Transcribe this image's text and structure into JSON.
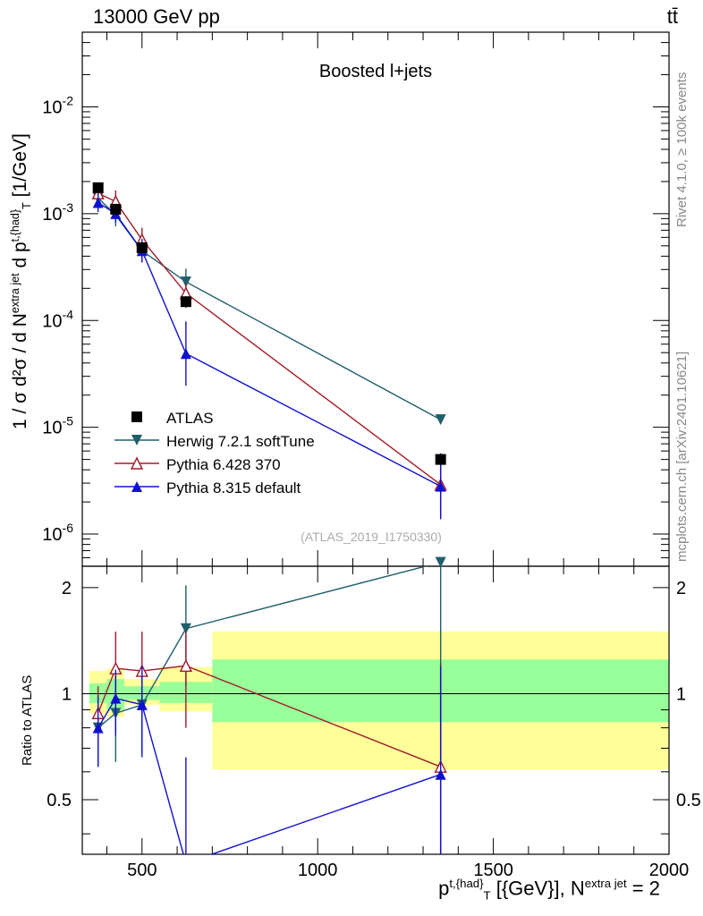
{
  "header": {
    "left": "13000 GeV pp",
    "right": "tt̄"
  },
  "side": {
    "rivet": "Rivet 4.1.0, ≥ 100k events",
    "mcplots": "mcplots.cern.ch [arXiv:2401.10621]"
  },
  "axes": {
    "ylabel_main": "1 / σ d²σ / d N^{extra jet} d p^{t,{had}}_{T} [1/GeV]",
    "ylabel_ratio": "Ratio to ATLAS",
    "xlabel": "p^{t,{had}}_{T} [{GeV}], N^{extra jet} = 2"
  },
  "chart_data": {
    "type": "line",
    "title": "Boosted l+jets",
    "watermark": "(ATLAS_2019_I1750330)",
    "xlim": [
      330,
      2000
    ],
    "ylim_main": [
      5e-07,
      0.05
    ],
    "ylim_ratio": [
      0.35,
      2.3
    ],
    "yscale_main": "log",
    "yscale_ratio": "log",
    "x_ticks": [
      500,
      1000,
      1500,
      2000
    ],
    "x_tick_labels": [
      "500",
      "1000",
      "1500",
      "2000"
    ],
    "y_ticks_main": [
      1e-06,
      1e-05,
      0.0001,
      0.001,
      0.01
    ],
    "y_tick_labels_main": [
      "10^-6",
      "10^-5",
      "10^-4",
      "10^-3",
      "10^-2"
    ],
    "y_ticks_ratio": [
      0.5,
      1,
      2
    ],
    "y_tick_labels_ratio": [
      "0.5",
      "1",
      "2"
    ],
    "legend_position": "lower-left",
    "data": {
      "name": "ATLAS",
      "bins": [
        [
          350,
          400
        ],
        [
          400,
          450
        ],
        [
          450,
          550
        ],
        [
          550,
          700
        ],
        [
          700,
          2000
        ]
      ],
      "x": [
        375,
        425,
        500,
        625,
        1350
      ],
      "y": [
        0.00175,
        0.0011,
        0.00048,
        0.00015,
        5e-06
      ],
      "band_stat_lo": [
        0.94,
        0.9,
        0.96,
        0.94,
        0.83
      ],
      "band_stat_hi": [
        1.07,
        1.1,
        1.05,
        1.08,
        1.25
      ],
      "band_tot_lo": [
        0.88,
        0.86,
        0.93,
        0.89,
        0.61
      ],
      "band_tot_hi": [
        1.16,
        1.18,
        1.1,
        1.19,
        1.5
      ]
    },
    "series": [
      {
        "name": "Herwig 7.2.1 softTune",
        "color": "#1f5f6b",
        "marker": "triangle-down",
        "x": [
          375,
          425,
          500,
          625,
          1350
        ],
        "y": [
          0.0014,
          0.00097,
          0.00045,
          0.00023,
          1.18e-05
        ],
        "ratio": [
          0.8,
          0.88,
          0.93,
          1.53,
          2.36
        ],
        "ratio_lo": [
          0.62,
          0.64,
          0.68,
          1.05,
          0.0
        ],
        "ratio_hi": [
          1.0,
          1.12,
          1.18,
          2.03,
          2.36
        ]
      },
      {
        "name": "Pythia 6.428 370",
        "color": "#a01b2b",
        "marker": "triangle-open",
        "x": [
          375,
          425,
          500,
          625,
          1350
        ],
        "y": [
          0.00155,
          0.0013,
          0.00057,
          0.00018,
          2.9e-06
        ],
        "ratio": [
          0.88,
          1.18,
          1.16,
          1.2,
          0.62
        ],
        "ratio_lo": [
          0.74,
          0.88,
          0.88,
          0.8,
          0.0
        ],
        "ratio_hi": [
          1.05,
          1.5,
          1.5,
          1.5,
          1.22
        ]
      },
      {
        "name": "Pythia 8.315 default",
        "color": "#1010d0",
        "marker": "triangle-up",
        "x": [
          375,
          425,
          500,
          625,
          1350
        ],
        "y": [
          0.00127,
          0.001,
          0.00045,
          4.9e-05,
          2.8e-06
        ],
        "ratio": [
          0.8,
          0.97,
          0.93,
          0.33,
          0.59
        ],
        "ratio_lo": [
          0.62,
          0.76,
          0.66,
          0.0,
          0.0
        ],
        "ratio_hi": [
          0.98,
          1.17,
          1.2,
          0.66,
          1.2
        ]
      }
    ]
  }
}
